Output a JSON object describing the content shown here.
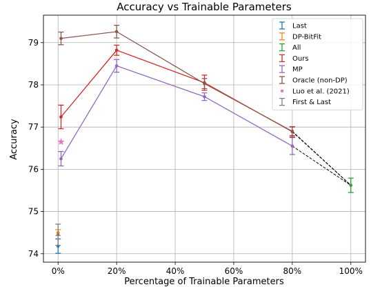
{
  "chart_data": {
    "type": "line",
    "title": "Accuracy vs Trainable Parameters",
    "xlabel": "Percentage of Trainable Parameters",
    "ylabel": "Accuracy",
    "xlim": [
      -5,
      105
    ],
    "ylim": [
      73.8,
      79.65
    ],
    "grid": true,
    "legend_position": "top-right",
    "xticks": [
      {
        "value": 0,
        "label": "0%"
      },
      {
        "value": 20,
        "label": "20%"
      },
      {
        "value": 40,
        "label": "40%"
      },
      {
        "value": 60,
        "label": "60%"
      },
      {
        "value": 80,
        "label": "80%"
      },
      {
        "value": 100,
        "label": "100%"
      }
    ],
    "yticks": [
      {
        "value": 74,
        "label": "74"
      },
      {
        "value": 75,
        "label": "75"
      },
      {
        "value": 76,
        "label": "76"
      },
      {
        "value": 77,
        "label": "77"
      },
      {
        "value": 78,
        "label": "78"
      },
      {
        "value": 79,
        "label": "79"
      }
    ],
    "series": [
      {
        "name": "Last",
        "color": "#1f77b4",
        "marker": "dot",
        "x": [
          0
        ],
        "y": [
          74.18
        ],
        "err": [
          0.17
        ]
      },
      {
        "name": "DP-BitFit",
        "color": "#ff7f0e",
        "marker": "dot",
        "x": [
          0
        ],
        "y": [
          74.5
        ],
        "err": [
          0.07
        ]
      },
      {
        "name": "All",
        "color": "#2ca02c",
        "marker": "dot",
        "x": [
          100
        ],
        "y": [
          75.62
        ],
        "err": [
          0.17
        ]
      },
      {
        "name": "Ours",
        "color": "#d62728",
        "marker": "dot",
        "x": [
          1,
          20,
          50,
          80
        ],
        "y": [
          77.24,
          78.82,
          78.05,
          76.89
        ],
        "err": [
          0.28,
          0.12,
          0.18,
          0.12
        ]
      },
      {
        "name": "MP",
        "color": "#9467bd",
        "marker": "dot",
        "x": [
          1,
          20,
          50,
          80
        ],
        "y": [
          76.25,
          78.45,
          77.72,
          76.55
        ],
        "err": [
          0.17,
          0.15,
          0.09,
          0.2
        ]
      },
      {
        "name": "Oracle (non-DP)",
        "color": "#8c564b",
        "marker": "dot",
        "x": [
          1,
          20,
          50,
          80
        ],
        "y": [
          79.1,
          79.26,
          78.03,
          76.9
        ],
        "err": [
          0.15,
          0.15,
          0.12,
          0.1
        ]
      },
      {
        "name": "Luo et al. (2021)",
        "color": "#e377c2",
        "marker": "star",
        "x": [
          1
        ],
        "y": [
          76.65
        ],
        "err": null
      },
      {
        "name": "First & Last",
        "color": "#7f7f7f",
        "marker": "dot",
        "x": [
          0
        ],
        "y": [
          74.45
        ],
        "err": [
          0.25
        ]
      }
    ],
    "connectors": [
      {
        "style": "dashed",
        "color": "#000000",
        "from": [
          80,
          76.89
        ],
        "to": [
          100,
          75.62
        ]
      },
      {
        "style": "dashed",
        "color": "#000000",
        "from": [
          80,
          76.55
        ],
        "to": [
          100,
          75.62
        ]
      },
      {
        "style": "dashed",
        "color": "#000000",
        "from": [
          80,
          76.9
        ],
        "to": [
          100,
          75.62
        ]
      }
    ]
  }
}
